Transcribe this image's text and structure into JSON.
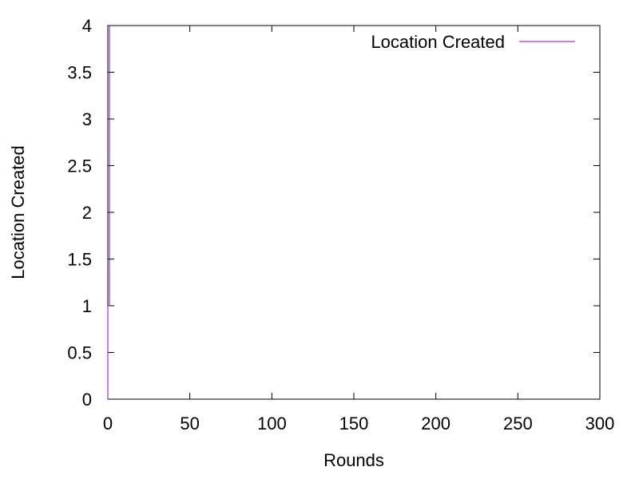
{
  "chart_data": {
    "type": "line",
    "title": "",
    "xlabel": "Rounds",
    "ylabel": "Location Created",
    "xlim": [
      0,
      300
    ],
    "ylim": [
      0,
      4
    ],
    "x_ticks": [
      0,
      50,
      100,
      150,
      200,
      250,
      300
    ],
    "x_tick_labels": [
      "0",
      "50",
      "100",
      "150",
      "200",
      "250",
      "300"
    ],
    "y_ticks": [
      0,
      0.5,
      1,
      1.5,
      2,
      2.5,
      3,
      3.5,
      4
    ],
    "y_tick_labels": [
      "0",
      "0.5",
      "1",
      "1.5",
      "2",
      "2.5",
      "3",
      "3.5",
      "4"
    ],
    "grid": false,
    "legend": {
      "position": "top-right",
      "entries": [
        "Location Created"
      ]
    },
    "series": [
      {
        "name": "Location Created",
        "color": "#9400d3",
        "x": [
          0,
          0,
          1,
          1,
          1,
          1
        ],
        "y": [
          0,
          1,
          1,
          2,
          3,
          4
        ]
      }
    ]
  }
}
